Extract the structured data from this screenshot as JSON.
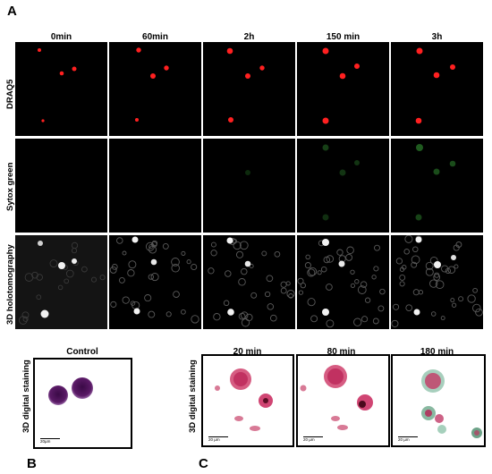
{
  "panel_labels": {
    "a": "A",
    "b": "B",
    "c": "C"
  },
  "panel_a": {
    "time_points": [
      "0min",
      "60min",
      "2h",
      "150 min",
      "3h"
    ],
    "rows": [
      "DRAQ5",
      "Sytox green",
      "3D holotomography"
    ],
    "colors": {
      "draq5": "#ff2020",
      "sytox": "#1a5a1a",
      "holo_bg": "#0a0a0a",
      "holo_cell": "#6a6a6a",
      "holo_bright": "#f0f0f0"
    }
  },
  "panel_b": {
    "column_label": "Control",
    "row_label": "3D digital staining",
    "scale_label": "20µm",
    "colors": {
      "cell": "#5a1a66",
      "rim": "#8a4a9a"
    }
  },
  "panel_c": {
    "time_points": [
      "20 min",
      "80 min",
      "180 min"
    ],
    "row_label": "3D digital staining",
    "scale_labels": [
      "20 µm",
      "20 µm",
      "20 µm"
    ],
    "colors": {
      "pink": "#c8245a",
      "green": "#2f7a55"
    }
  }
}
